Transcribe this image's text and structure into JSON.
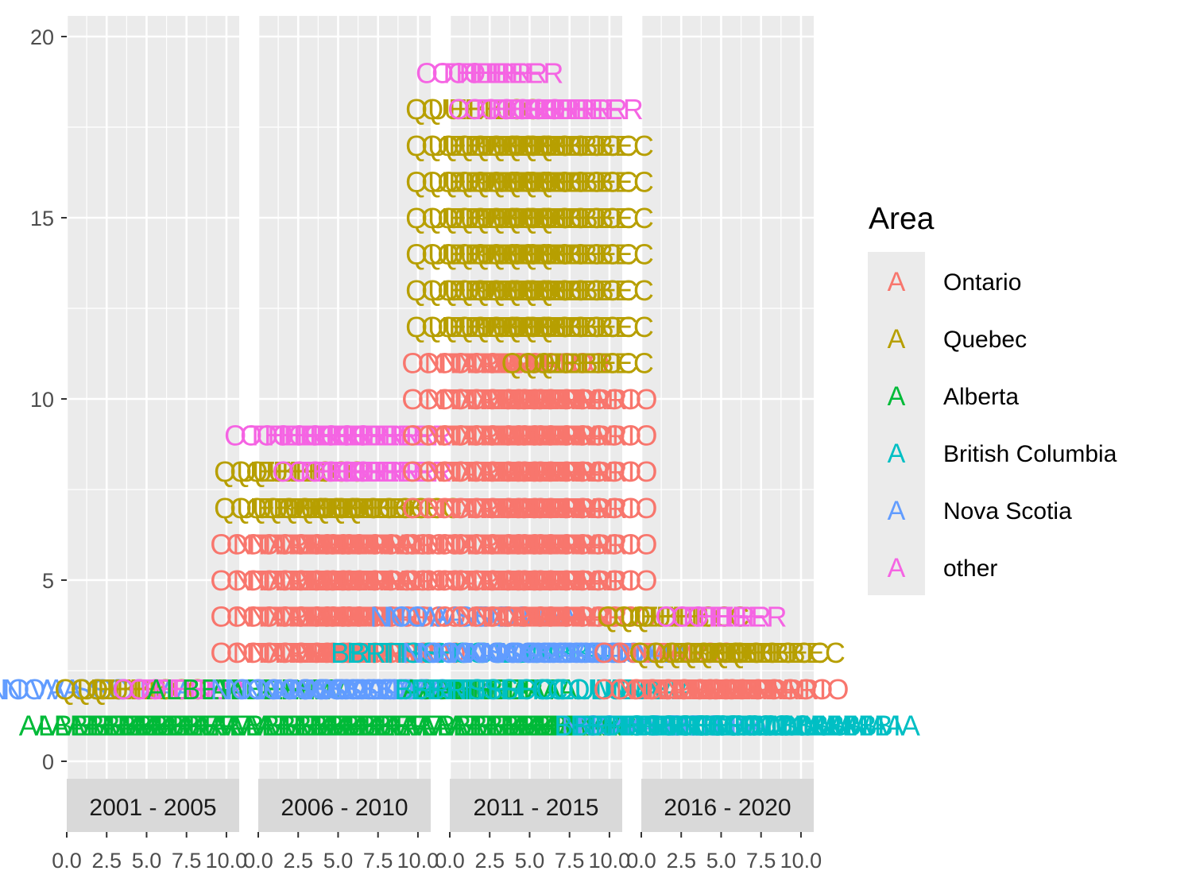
{
  "chart_data": {
    "type": "text-scatter",
    "facet_by": "period",
    "facets": [
      "2001 - 2005",
      "2006 - 2010",
      "2011 - 2015",
      "2016 - 2020"
    ],
    "x_ticks": [
      "0.0",
      "2.5",
      "5.0",
      "7.5",
      "10.0"
    ],
    "xlim": [
      0,
      10.8
    ],
    "y_ticks": [
      "0",
      "5",
      "10",
      "15",
      "20"
    ],
    "ylim": [
      -0.5,
      20.5
    ],
    "grid": true,
    "legend": {
      "title": "Area",
      "position": "right",
      "key_glyph": "A",
      "entries": [
        {
          "name": "Ontario",
          "color": "#F8766D"
        },
        {
          "name": "Quebec",
          "color": "#B79F00"
        },
        {
          "name": "Alberta",
          "color": "#00BA38"
        },
        {
          "name": "British Columbia",
          "color": "#00BFC4"
        },
        {
          "name": "Nova Scotia",
          "color": "#619CFF"
        },
        {
          "name": "other",
          "color": "#F564E3"
        }
      ]
    },
    "rows": [
      {
        "facet": 0,
        "y": 1,
        "area": "Alberta",
        "label": "ALBERTA",
        "count": 9
      },
      {
        "facet": 0,
        "y": 2,
        "area": "Nova Scotia",
        "label": "NOVA SCOTIA",
        "count": 2
      },
      {
        "facet": 0,
        "y": 2,
        "area": "Quebec",
        "label": "QUEBEC",
        "count": 3
      },
      {
        "facet": 0,
        "y": 2,
        "area": "other",
        "label": "OTHER",
        "count": 3
      },
      {
        "facet": 0,
        "y": 2,
        "area": "Alberta",
        "label": "ALBERTA",
        "count": 1
      },
      {
        "facet": 1,
        "y": 1,
        "area": "Alberta",
        "label": "ALBERTA",
        "count": 9
      },
      {
        "facet": 1,
        "y": 2,
        "area": "Alberta",
        "label": "ALBERTA",
        "count": 2
      },
      {
        "facet": 1,
        "y": 2,
        "area": "Nova Scotia",
        "label": "NOVA SCOTIA",
        "count": 7
      },
      {
        "facet": 1,
        "y": 3,
        "area": "Ontario",
        "label": "ONTARIO",
        "count": 9
      },
      {
        "facet": 1,
        "y": 4,
        "area": "Ontario",
        "label": "ONTARIO",
        "count": 9
      },
      {
        "facet": 1,
        "y": 5,
        "area": "Ontario",
        "label": "ONTARIO",
        "count": 9
      },
      {
        "facet": 1,
        "y": 6,
        "area": "Ontario",
        "label": "ONTARIO",
        "count": 9
      },
      {
        "facet": 1,
        "y": 7,
        "area": "Quebec",
        "label": "QUEBEC",
        "count": 9
      },
      {
        "facet": 1,
        "y": 8,
        "area": "Quebec",
        "label": "QUEBEC",
        "count": 3
      },
      {
        "facet": 1,
        "y": 8,
        "area": "other",
        "label": "OTHER",
        "count": 6
      },
      {
        "facet": 1,
        "y": 9,
        "area": "other",
        "label": "OTHER",
        "count": 9
      },
      {
        "facet": 2,
        "y": 1,
        "area": "Alberta",
        "label": "ALBERTA",
        "count": 9
      },
      {
        "facet": 2,
        "y": 2,
        "area": "Alberta",
        "label": "ALBERTA",
        "count": 4
      },
      {
        "facet": 2,
        "y": 2,
        "area": "British Columbia",
        "label": "BRITISH COLUMBIA",
        "count": 3
      },
      {
        "facet": 2,
        "y": 3,
        "area": "British Columbia",
        "label": "BRITISH COLUMBIA",
        "count": 2
      },
      {
        "facet": 2,
        "y": 3,
        "area": "Nova Scotia",
        "label": "NOVA SCOTIA",
        "count": 7
      },
      {
        "facet": 2,
        "y": 4,
        "area": "Nova Scotia",
        "label": "NOVA SCOTIA",
        "count": 2
      },
      {
        "facet": 2,
        "y": 4,
        "area": "Ontario",
        "label": "ONTARIO",
        "count": 7
      },
      {
        "facet": 2,
        "y": 5,
        "area": "Ontario",
        "label": "ONTARIO",
        "count": 9
      },
      {
        "facet": 2,
        "y": 6,
        "area": "Ontario",
        "label": "ONTARIO",
        "count": 9
      },
      {
        "facet": 2,
        "y": 7,
        "area": "Ontario",
        "label": "ONTARIO",
        "count": 9
      },
      {
        "facet": 2,
        "y": 8,
        "area": "Ontario",
        "label": "ONTARIO",
        "count": 9
      },
      {
        "facet": 2,
        "y": 9,
        "area": "Ontario",
        "label": "ONTARIO",
        "count": 9
      },
      {
        "facet": 2,
        "y": 10,
        "area": "Ontario",
        "label": "ONTARIO",
        "count": 9
      },
      {
        "facet": 2,
        "y": 11,
        "area": "Ontario",
        "label": "ONTARIO",
        "count": 6
      },
      {
        "facet": 2,
        "y": 11,
        "area": "Quebec",
        "label": "QUEBEC",
        "count": 3
      },
      {
        "facet": 2,
        "y": 12,
        "area": "Quebec",
        "label": "QUEBEC",
        "count": 9
      },
      {
        "facet": 2,
        "y": 13,
        "area": "Quebec",
        "label": "QUEBEC",
        "count": 9
      },
      {
        "facet": 2,
        "y": 14,
        "area": "Quebec",
        "label": "QUEBEC",
        "count": 9
      },
      {
        "facet": 2,
        "y": 15,
        "area": "Quebec",
        "label": "QUEBEC",
        "count": 9
      },
      {
        "facet": 2,
        "y": 16,
        "area": "Quebec",
        "label": "QUEBEC",
        "count": 9
      },
      {
        "facet": 2,
        "y": 17,
        "area": "Quebec",
        "label": "QUEBEC",
        "count": 9
      },
      {
        "facet": 2,
        "y": 18,
        "area": "Quebec",
        "label": "QUEBEC",
        "count": 2
      },
      {
        "facet": 2,
        "y": 18,
        "area": "other",
        "label": "OTHER",
        "count": 7
      },
      {
        "facet": 2,
        "y": 19,
        "area": "other",
        "label": "OTHER",
        "count": 4
      },
      {
        "facet": 3,
        "y": 1,
        "area": "Nova Scotia",
        "label": "NOVA SCOTIA",
        "count": 2
      },
      {
        "facet": 3,
        "y": 1,
        "area": "British Columbia",
        "label": "BRITISH COLUMBIA",
        "count": 7
      },
      {
        "facet": 3,
        "y": 2,
        "area": "Ontario",
        "label": "ONTARIO",
        "count": 9
      },
      {
        "facet": 3,
        "y": 3,
        "area": "Ontario",
        "label": "ONTARIO",
        "count": 2
      },
      {
        "facet": 3,
        "y": 3,
        "area": "Quebec",
        "label": "QUEBEC",
        "count": 7
      },
      {
        "facet": 3,
        "y": 4,
        "area": "Quebec",
        "label": "QUEBEC",
        "count": 3
      },
      {
        "facet": 3,
        "y": 4,
        "area": "other",
        "label": "OTHER",
        "count": 3
      }
    ]
  }
}
